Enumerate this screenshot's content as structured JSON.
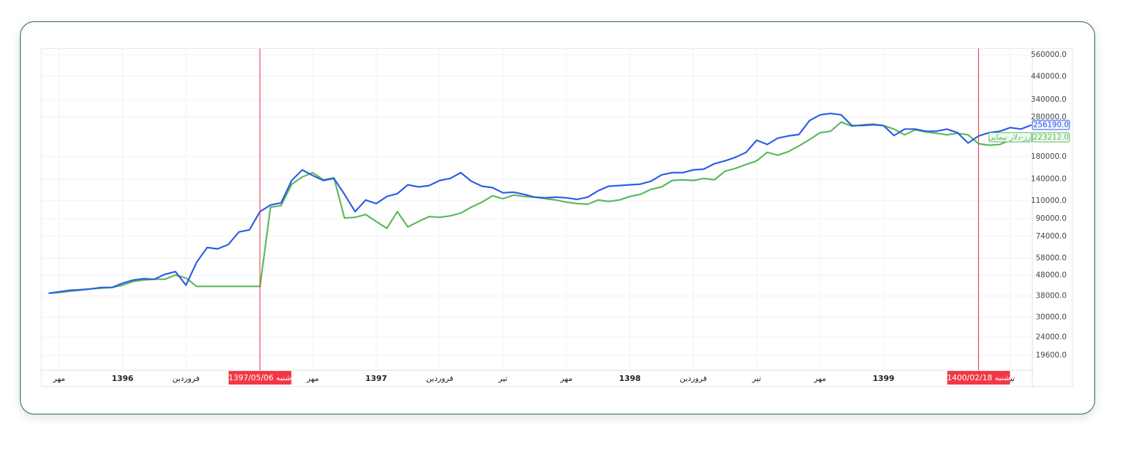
{
  "chart_data": {
    "type": "line",
    "yscale": "log",
    "grid": true,
    "ylim": [
      16600,
      592000
    ],
    "yticks": [
      {
        "value": 560000,
        "label": "560000.0"
      },
      {
        "value": 440000,
        "label": "440000.0"
      },
      {
        "value": 340000,
        "label": "340000.0"
      },
      {
        "value": 280000,
        "label": "280000.0"
      },
      {
        "value": 180000,
        "label": "180000.0"
      },
      {
        "value": 140000,
        "label": "140000.0"
      },
      {
        "value": 110000,
        "label": "110000.0"
      },
      {
        "value": 90000,
        "label": "90000.0"
      },
      {
        "value": 74000,
        "label": "74000.0"
      },
      {
        "value": 58000,
        "label": "58000.0"
      },
      {
        "value": 48000,
        "label": "48000.0"
      },
      {
        "value": 38000,
        "label": "38000.0"
      },
      {
        "value": 30000,
        "label": "30000.0"
      },
      {
        "value": 24000,
        "label": "24000.0"
      },
      {
        "value": 19600,
        "label": "19600.0"
      }
    ],
    "categories": [
      null,
      "مهر",
      null,
      null,
      null,
      null,
      null,
      "1396",
      null,
      null,
      null,
      null,
      null,
      "فروردین",
      null,
      null,
      null,
      null,
      null,
      null,
      null,
      null,
      null,
      null,
      null,
      "مهر",
      null,
      null,
      null,
      null,
      null,
      "1397",
      null,
      null,
      null,
      null,
      null,
      "فروردین",
      null,
      null,
      null,
      null,
      null,
      "تیر",
      null,
      null,
      null,
      null,
      null,
      "مهر",
      null,
      null,
      null,
      null,
      null,
      "1398",
      null,
      null,
      null,
      null,
      null,
      "فروردین",
      null,
      null,
      null,
      null,
      null,
      "تیر",
      null,
      null,
      null,
      null,
      null,
      "مهر",
      null,
      null,
      null,
      null,
      null,
      "1399",
      null,
      null,
      null,
      null,
      null,
      null,
      null,
      null,
      null,
      null,
      null,
      "تیر",
      null,
      null
    ],
    "series": [
      {
        "color": "#2b5ce6",
        "last_value_label": "256190.0",
        "values": [
          39200,
          39850,
          40500,
          40800,
          41150,
          41800,
          41800,
          43800,
          45400,
          46100,
          45800,
          48400,
          49900,
          42900,
          55300,
          65300,
          64300,
          67500,
          77600,
          79500,
          97400,
          104900,
          107400,
          137800,
          155200,
          145700,
          137800,
          141100,
          118200,
          97400,
          110900,
          106600,
          115400,
          119100,
          131400,
          128300,
          130300,
          137800,
          141100,
          150400,
          136700,
          129300,
          127300,
          120100,
          121000,
          118200,
          114500,
          113600,
          114500,
          113600,
          111800,
          114500,
          122900,
          129300,
          130300,
          131400,
          132400,
          136700,
          146800,
          150400,
          150400,
          155200,
          156500,
          166200,
          171600,
          178600,
          188800,
          216100,
          206000,
          221200,
          226600,
          230300,
          269100,
          286700,
          291300,
          286700,
          254500,
          254500,
          256600,
          254500,
          227700,
          244600,
          244600,
          238900,
          238900,
          244600,
          235100,
          209300,
          226600,
          235100,
          238900,
          248600,
          244600,
          256190
        ]
      },
      {
        "name": "ارز-دلار نیمایی",
        "color": "#5cb85c",
        "last_value_label": "223212.0",
        "values": [
          39200,
          39500,
          40100,
          40500,
          41150,
          41500,
          41800,
          42900,
          44700,
          45400,
          45800,
          45800,
          48000,
          46500,
          42300,
          42300,
          42300,
          42300,
          42300,
          42300,
          42300,
          102400,
          104100,
          132200,
          143400,
          150400,
          138900,
          142200,
          90700,
          91400,
          94400,
          87200,
          80800,
          97400,
          82100,
          87200,
          92200,
          91400,
          92900,
          95900,
          102400,
          108300,
          116300,
          112600,
          117200,
          115400,
          114500,
          112600,
          110900,
          108300,
          106600,
          105700,
          110900,
          109100,
          110900,
          115400,
          118200,
          124900,
          128300,
          137800,
          138900,
          137800,
          141100,
          138900,
          152800,
          157700,
          165000,
          171600,
          188800,
          182900,
          190300,
          202800,
          217800,
          235100,
          238900,
          264800,
          252500,
          256600,
          258700,
          254500,
          244600,
          229500,
          242700,
          237000,
          233300,
          229500,
          233300,
          229500,
          207700,
          204400,
          206000,
          216100,
          221200,
          223212
        ]
      }
    ],
    "crosshairs": [
      {
        "index": 20,
        "label": "شنبه 1397/05/06"
      },
      {
        "index": 88,
        "label": "شنبه 1400/02/18"
      }
    ]
  }
}
